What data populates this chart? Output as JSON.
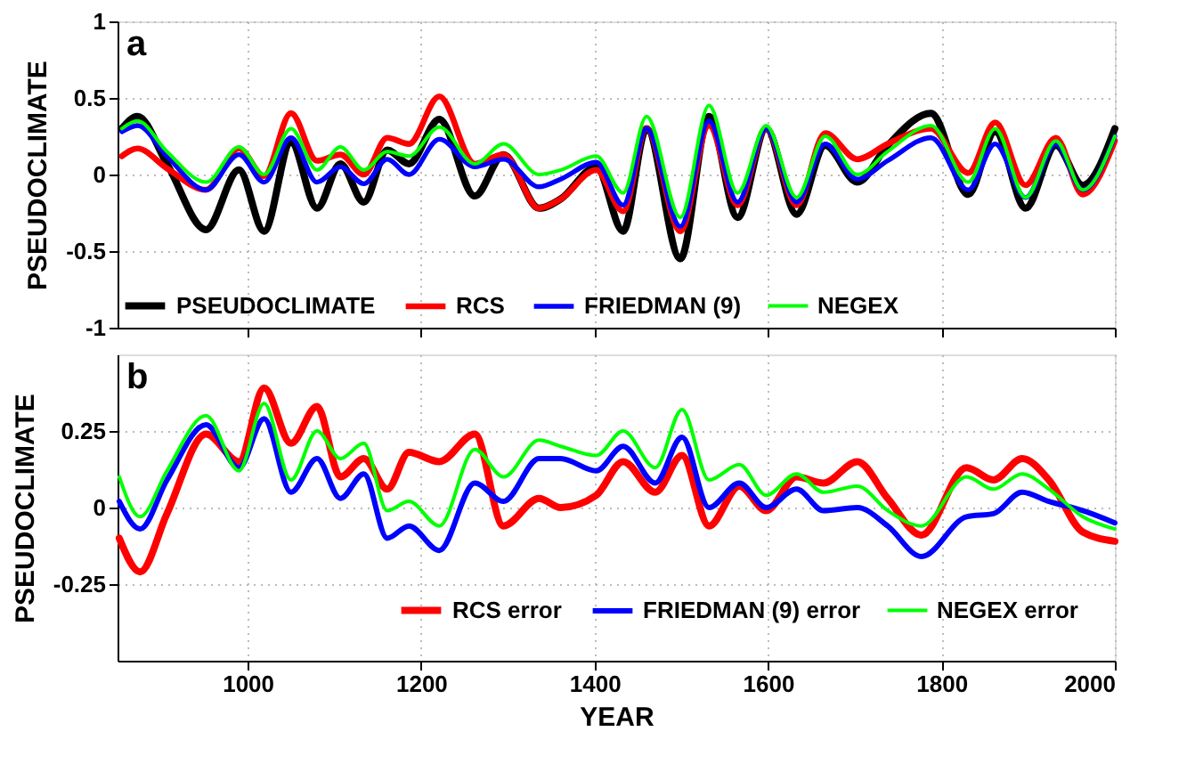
{
  "chart_data": [
    {
      "type": "line",
      "annotations": [
        "a"
      ],
      "ylabel": "PSEUDOCLIMATE",
      "xlim": [
        850,
        2000
      ],
      "xticks": [
        1000,
        1200,
        1400,
        1600,
        1800,
        2000
      ],
      "ylim": [
        -1,
        1
      ],
      "yticks": [
        -1,
        -0.5,
        0,
        0.5,
        1
      ],
      "tick_labels": "y",
      "grid": true,
      "legend": "bottom",
      "line_style": "solid",
      "x": [
        855,
        873,
        907,
        952,
        990,
        1019,
        1050,
        1080,
        1107,
        1134,
        1161,
        1186,
        1221,
        1262,
        1295,
        1336,
        1361,
        1402,
        1433,
        1460,
        1499,
        1532,
        1565,
        1598,
        1633,
        1666,
        1703,
        1738,
        1788,
        1831,
        1862,
        1897,
        1932,
        1963,
        2000
      ],
      "series": [
        {
          "name": "PSEUDOCLIMATE",
          "color": "#000000",
          "values": [
            0.3,
            0.38,
            0.07,
            -0.36,
            0.03,
            -0.37,
            0.21,
            -0.22,
            0.07,
            -0.18,
            0.16,
            0.07,
            0.36,
            -0.14,
            0.13,
            -0.22,
            -0.16,
            0.05,
            -0.37,
            0.3,
            -0.55,
            0.38,
            -0.28,
            0.3,
            -0.26,
            0.19,
            -0.05,
            0.19,
            0.4,
            -0.13,
            0.28,
            -0.22,
            0.19,
            -0.07,
            0.3
          ]
        },
        {
          "name": "RCS",
          "color": "#ff0000",
          "values": [
            0.12,
            0.17,
            0.04,
            -0.1,
            0.17,
            -0.01,
            0.4,
            0.09,
            0.13,
            0.0,
            0.24,
            0.2,
            0.51,
            0.07,
            0.13,
            -0.22,
            -0.16,
            0.03,
            -0.24,
            0.3,
            -0.37,
            0.32,
            -0.2,
            0.3,
            -0.2,
            0.27,
            0.1,
            0.2,
            0.3,
            0.01,
            0.34,
            -0.07,
            0.24,
            -0.13,
            0.22
          ]
        },
        {
          "name": "FRIEDMAN (9)",
          "color": "#0000ff",
          "values": [
            0.28,
            0.32,
            0.12,
            -0.1,
            0.13,
            -0.05,
            0.24,
            -0.05,
            0.05,
            -0.06,
            0.1,
            0.0,
            0.23,
            0.05,
            0.1,
            -0.08,
            -0.03,
            0.08,
            -0.2,
            0.3,
            -0.34,
            0.35,
            -0.18,
            0.3,
            -0.18,
            0.2,
            -0.03,
            0.09,
            0.24,
            -0.1,
            0.2,
            -0.15,
            0.2,
            -0.1,
            0.25
          ]
        },
        {
          "name": "NEGEX",
          "color": "#00ff00",
          "values": [
            0.3,
            0.35,
            0.15,
            -0.05,
            0.18,
            0.0,
            0.3,
            0.03,
            0.18,
            0.03,
            0.15,
            0.12,
            0.31,
            0.07,
            0.2,
            0.0,
            0.03,
            0.12,
            -0.12,
            0.38,
            -0.28,
            0.45,
            -0.12,
            0.32,
            -0.15,
            0.25,
            0.0,
            0.15,
            0.32,
            -0.05,
            0.3,
            -0.15,
            0.22,
            -0.1,
            0.25
          ]
        }
      ]
    },
    {
      "type": "line",
      "annotations": [
        "b"
      ],
      "xlabel": "YEAR",
      "ylabel": "PSEUDOCLIMATE",
      "xlim": [
        850,
        2000
      ],
      "xticks": [
        1000,
        1200,
        1400,
        1600,
        1800,
        2000
      ],
      "ylim": [
        -0.5,
        0.5
      ],
      "yticks": [
        -0.25,
        0,
        0.25
      ],
      "grid": true,
      "legend": "bottom right",
      "line_style": "solid",
      "x": [
        852,
        876,
        907,
        952,
        990,
        1019,
        1050,
        1080,
        1107,
        1134,
        1161,
        1186,
        1221,
        1262,
        1295,
        1336,
        1361,
        1402,
        1433,
        1470,
        1501,
        1532,
        1567,
        1598,
        1633,
        1664,
        1703,
        1738,
        1777,
        1829,
        1860,
        1893,
        1924,
        1963,
        2000
      ],
      "series": [
        {
          "name": "RCS error",
          "color": "#ff0000",
          "values": [
            -0.1,
            -0.21,
            -0.02,
            0.24,
            0.15,
            0.39,
            0.21,
            0.33,
            0.1,
            0.16,
            0.06,
            0.18,
            0.15,
            0.24,
            -0.06,
            0.03,
            0.0,
            0.04,
            0.15,
            0.05,
            0.17,
            -0.06,
            0.07,
            -0.01,
            0.1,
            0.08,
            0.15,
            0.03,
            -0.09,
            0.13,
            0.09,
            0.16,
            0.09,
            -0.08,
            -0.11
          ]
        },
        {
          "name": "FRIEDMAN (9) error",
          "color": "#0000ff",
          "values": [
            0.02,
            -0.07,
            0.09,
            0.27,
            0.13,
            0.29,
            0.05,
            0.16,
            0.03,
            0.11,
            -0.1,
            -0.06,
            -0.14,
            0.08,
            0.02,
            0.16,
            0.16,
            0.12,
            0.2,
            0.08,
            0.23,
            0.0,
            0.08,
            0.0,
            0.06,
            -0.01,
            0.0,
            -0.06,
            -0.16,
            -0.03,
            -0.02,
            0.05,
            0.02,
            -0.01,
            -0.05
          ]
        },
        {
          "name": "NEGEX error",
          "color": "#00ff00",
          "values": [
            0.1,
            -0.03,
            0.12,
            0.3,
            0.12,
            0.34,
            0.09,
            0.25,
            0.16,
            0.21,
            -0.01,
            0.02,
            -0.06,
            0.19,
            0.1,
            0.22,
            0.2,
            0.17,
            0.25,
            0.13,
            0.32,
            0.09,
            0.14,
            0.04,
            0.11,
            0.05,
            0.07,
            -0.01,
            -0.06,
            0.1,
            0.06,
            0.11,
            0.06,
            -0.03,
            -0.07
          ]
        }
      ]
    }
  ]
}
